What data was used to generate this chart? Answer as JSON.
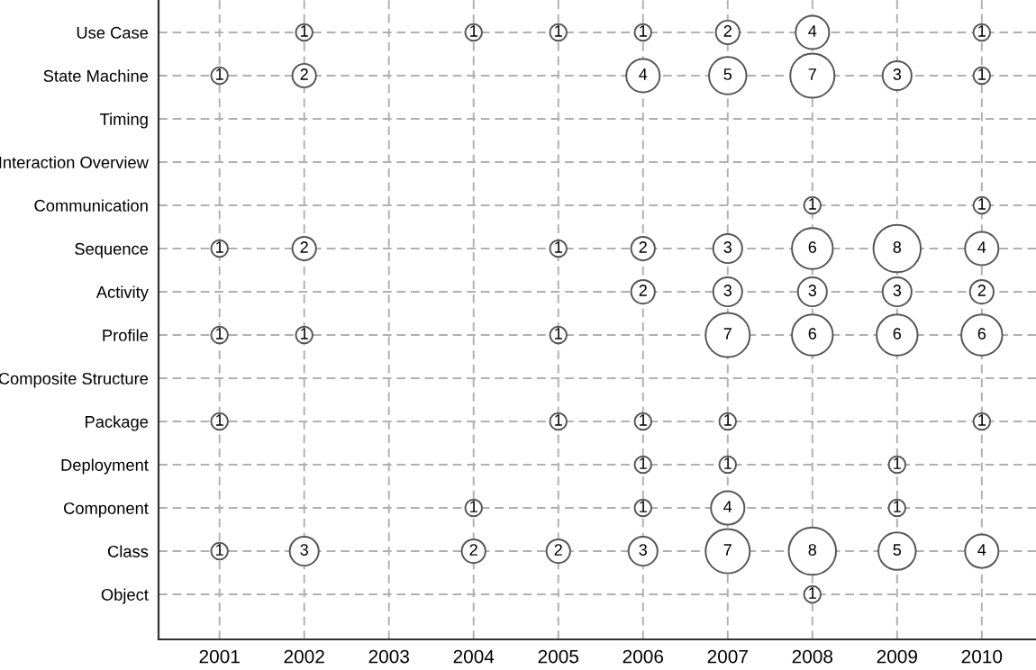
{
  "chart_data": {
    "type": "heatmap",
    "categories": [
      "2001",
      "2002",
      "2003",
      "2004",
      "2005",
      "2006",
      "2007",
      "2008",
      "2009",
      "2010"
    ],
    "y_categories": [
      "Use Case",
      "State Machine",
      "Timing",
      "Interaction Overview",
      "Communication",
      "Sequence",
      "Activity",
      "Profile",
      "Composite Structure",
      "Package",
      "Deployment",
      "Component",
      "Class",
      "Object"
    ],
    "cells": [
      [
        null,
        1,
        null,
        1,
        1,
        1,
        2,
        4,
        null,
        1
      ],
      [
        1,
        2,
        null,
        null,
        null,
        4,
        5,
        7,
        3,
        1
      ],
      [
        null,
        null,
        null,
        null,
        null,
        null,
        null,
        null,
        null,
        null
      ],
      [
        null,
        null,
        null,
        null,
        null,
        null,
        null,
        null,
        null,
        null
      ],
      [
        null,
        null,
        null,
        null,
        null,
        null,
        null,
        1,
        null,
        1
      ],
      [
        1,
        2,
        null,
        null,
        1,
        2,
        3,
        6,
        8,
        4
      ],
      [
        null,
        null,
        null,
        null,
        null,
        2,
        3,
        3,
        3,
        2
      ],
      [
        1,
        1,
        null,
        null,
        1,
        null,
        7,
        6,
        6,
        6
      ],
      [
        null,
        null,
        null,
        null,
        null,
        null,
        null,
        null,
        null,
        null
      ],
      [
        1,
        null,
        null,
        null,
        1,
        1,
        1,
        null,
        null,
        1
      ],
      [
        null,
        null,
        null,
        null,
        null,
        1,
        1,
        null,
        1,
        null
      ],
      [
        null,
        null,
        null,
        1,
        null,
        1,
        4,
        null,
        1,
        null
      ],
      [
        1,
        3,
        null,
        2,
        2,
        3,
        7,
        8,
        5,
        4
      ],
      [
        null,
        null,
        null,
        null,
        null,
        null,
        null,
        1,
        null,
        null
      ]
    ],
    "data_labels": true,
    "grid": true
  }
}
